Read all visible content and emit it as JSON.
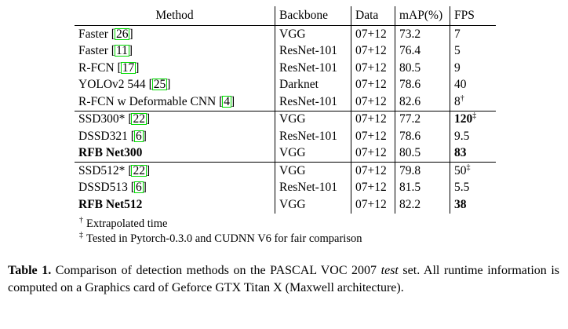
{
  "colors": {
    "citation_box": "#00DC00",
    "text": "#000000",
    "background": "#ffffff"
  },
  "table": {
    "columns": [
      "Method",
      "Backbone",
      "Data",
      "mAP(%)",
      "FPS"
    ],
    "cite_open": "[",
    "cite_close": "]",
    "groups": [
      {
        "rows": [
          {
            "method": "Faster",
            "method_bold": false,
            "cite": "26",
            "backbone": "VGG",
            "data": "07+12",
            "map": "73.2",
            "map_bold": false,
            "fps": "7",
            "fps_bold": false,
            "fps_sup": null
          },
          {
            "method": "Faster",
            "method_bold": false,
            "cite": "11",
            "backbone": "ResNet-101",
            "data": "07+12",
            "map": "76.4",
            "map_bold": false,
            "fps": "5",
            "fps_bold": false,
            "fps_sup": null
          },
          {
            "method": "R-FCN",
            "method_bold": false,
            "cite": "17",
            "backbone": "ResNet-101",
            "data": "07+12",
            "map": "80.5",
            "map_bold": false,
            "fps": "9",
            "fps_bold": false,
            "fps_sup": null
          },
          {
            "method": "YOLOv2 544",
            "method_bold": false,
            "cite": "25",
            "backbone": "Darknet",
            "data": "07+12",
            "map": "78.6",
            "map_bold": false,
            "fps": "40",
            "fps_bold": false,
            "fps_sup": null
          },
          {
            "method": "R-FCN w Deformable CNN",
            "method_bold": false,
            "cite": "4",
            "backbone": "ResNet-101",
            "data": "07+12",
            "map": "82.6",
            "map_bold": true,
            "fps": "8",
            "fps_bold": false,
            "fps_sup": "†"
          }
        ]
      },
      {
        "rows": [
          {
            "method": "SSD300*",
            "method_bold": false,
            "cite": "22",
            "backbone": "VGG",
            "data": "07+12",
            "map": "77.2",
            "map_bold": false,
            "fps": "120",
            "fps_bold": true,
            "fps_sup": "‡"
          },
          {
            "method": "DSSD321",
            "method_bold": false,
            "cite": "6",
            "backbone": "ResNet-101",
            "data": "07+12",
            "map": "78.6",
            "map_bold": false,
            "fps": "9.5",
            "fps_bold": false,
            "fps_sup": null
          },
          {
            "method": "RFB Net300",
            "method_bold": true,
            "cite": null,
            "backbone": "VGG",
            "data": "07+12",
            "map": "80.5",
            "map_bold": true,
            "fps": "83",
            "fps_bold": true,
            "fps_sup": null
          }
        ]
      },
      {
        "rows": [
          {
            "method": "SSD512*",
            "method_bold": false,
            "cite": "22",
            "backbone": "VGG",
            "data": "07+12",
            "map": "79.8",
            "map_bold": false,
            "fps": "50",
            "fps_bold": false,
            "fps_sup": "‡"
          },
          {
            "method": "DSSD513",
            "method_bold": false,
            "cite": "6",
            "backbone": "ResNet-101",
            "data": "07+12",
            "map": "81.5",
            "map_bold": false,
            "fps": "5.5",
            "fps_bold": false,
            "fps_sup": null
          },
          {
            "method": "RFB Net512",
            "method_bold": true,
            "cite": null,
            "backbone": "VGG",
            "data": "07+12",
            "map": "82.2",
            "map_bold": true,
            "fps": "38",
            "fps_bold": true,
            "fps_sup": null
          }
        ]
      }
    ]
  },
  "footnotes": [
    {
      "symbol": "†",
      "text": "Extrapolated time"
    },
    {
      "symbol": "‡",
      "text": "Tested in Pytorch-0.3.0 and CUDNN V6 for fair comparison"
    }
  ],
  "caption": {
    "label": "Table 1.",
    "text_before_italic": " Comparison of detection methods on the PASCAL VOC 2007 ",
    "italic": "test",
    "text_after_italic": " set. All runtime information is computed on a Graphics card of Geforce GTX Titan X (Maxwell architecture)."
  }
}
